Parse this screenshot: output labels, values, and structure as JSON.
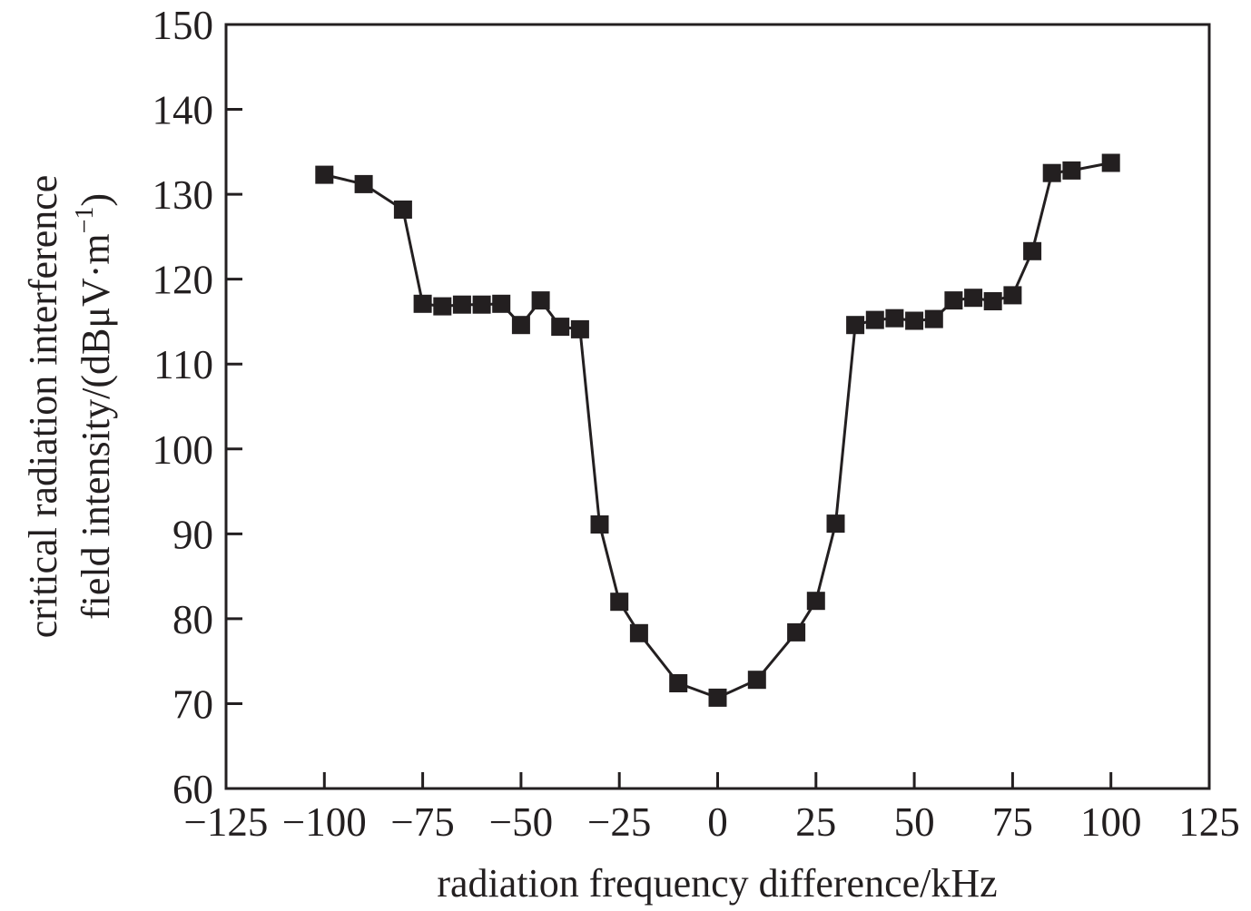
{
  "chart_data": {
    "type": "line",
    "title": "",
    "xlabel": "radiation frequency difference/kHz",
    "ylabel_line1": "critical radiation interference",
    "ylabel_line2": "field intensity/(dBμV·m",
    "ylabel_sup": "−1",
    "ylabel_close": ")",
    "xlim": [
      -125,
      125
    ],
    "ylim": [
      60,
      150
    ],
    "xticks": [
      -125,
      -100,
      -75,
      -50,
      -25,
      0,
      25,
      50,
      75,
      100,
      125
    ],
    "xtick_labels": [
      "−125",
      "−100",
      "−75",
      "−50",
      "−25",
      "0",
      "25",
      "50",
      "75",
      "100",
      "125"
    ],
    "yticks": [
      60,
      70,
      80,
      90,
      100,
      110,
      120,
      130,
      140,
      150
    ],
    "ytick_labels": [
      "60",
      "70",
      "80",
      "90",
      "100",
      "110",
      "120",
      "130",
      "140",
      "150"
    ],
    "grid": false,
    "legend": null,
    "marker": "square",
    "color": "#231f20",
    "series": [
      {
        "name": "critical field intensity",
        "x": [
          -100,
          -90,
          -80,
          -75,
          -70,
          -65,
          -60,
          -55,
          -50,
          -45,
          -40,
          -35,
          -30,
          -25,
          -20,
          -10,
          0,
          10,
          20,
          25,
          30,
          35,
          40,
          45,
          50,
          55,
          60,
          65,
          70,
          75,
          80,
          85,
          90,
          100
        ],
        "y": [
          132.3,
          131.2,
          128.2,
          117.1,
          116.8,
          117.0,
          117.0,
          117.1,
          114.6,
          117.5,
          114.4,
          114.1,
          91.1,
          82.0,
          78.3,
          72.4,
          70.7,
          72.8,
          78.4,
          82.1,
          91.2,
          114.6,
          115.2,
          115.4,
          115.1,
          115.3,
          117.5,
          117.8,
          117.4,
          118.1,
          123.3,
          132.5,
          132.8,
          133.7
        ]
      }
    ]
  }
}
